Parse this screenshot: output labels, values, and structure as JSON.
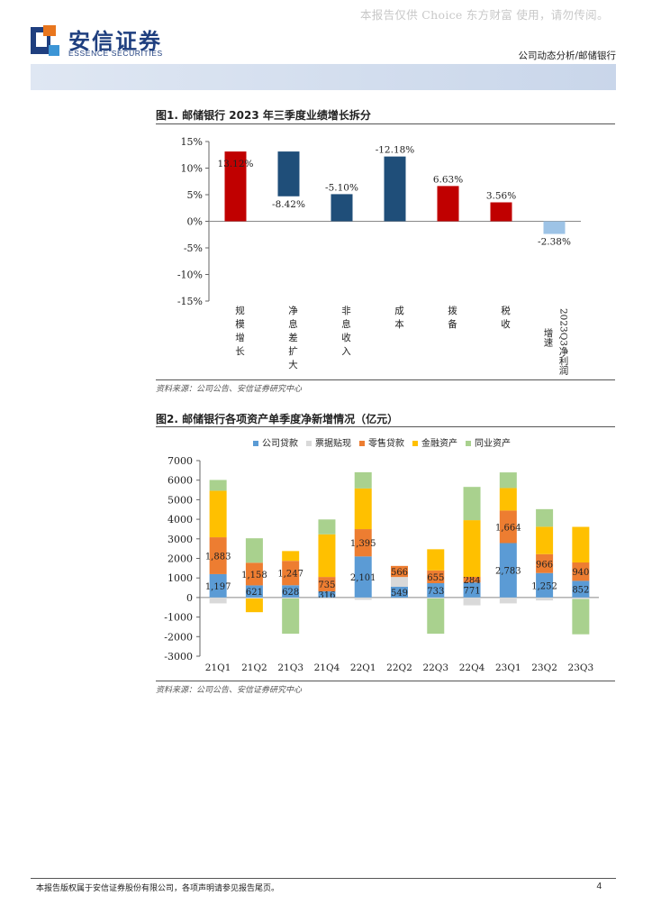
{
  "watermark": "本报告仅供 Choice 东方财富 使用，请勿传阅。",
  "brand": {
    "name_cn": "安信证券",
    "name_en": "ESSENCE SECURITIES",
    "colors": {
      "navy": "#1f3f7f",
      "orange": "#e8761e",
      "light_blue": "#3c95d6"
    }
  },
  "header": {
    "report_type": "公司动态分析/邮储银行"
  },
  "fig1": {
    "title": "图1. 邮储银行 2023 年三季度业绩增长拆分",
    "source": "资料来源：公司公告、安信证券研究中心"
  },
  "fig2": {
    "title": "图2. 邮储银行各项资产单季度净新增情况（亿元）",
    "source": "资料来源：公司公告、安信证券研究中心"
  },
  "footer": {
    "disclaimer": "本报告版权属于安信证券股份有限公司，各项声明请参见报告尾页。",
    "page": "4"
  },
  "chart_data": [
    {
      "type": "bar",
      "subtype": "waterfall",
      "categories": [
        "规模增长",
        "净息差扩大",
        "非息收入",
        "成本",
        "拨备",
        "税收",
        "2023Q3净利润增速"
      ],
      "values": [
        13.12,
        -8.42,
        -5.1,
        -12.18,
        6.63,
        3.56,
        -2.38
      ],
      "labels": [
        "13.12%",
        "-8.42%",
        "-5.10%",
        "-12.18%",
        "6.63%",
        "3.56%",
        "-2.38%"
      ],
      "bars": [
        {
          "bottom": 0,
          "top": 13.12,
          "color": "#c00000"
        },
        {
          "bottom": 4.7,
          "top": 13.12,
          "color": "#1f4e79"
        },
        {
          "bottom": 0,
          "top": 5.1,
          "color": "#1f4e79"
        },
        {
          "bottom": 0,
          "top": 12.18,
          "color": "#1f4e79"
        },
        {
          "bottom": 0,
          "top": 6.63,
          "color": "#c00000"
        },
        {
          "bottom": 0,
          "top": 3.56,
          "color": "#c00000"
        },
        {
          "bottom": -2.38,
          "top": 0,
          "color": "#9dc3e6"
        }
      ],
      "yticks": [
        "15%",
        "10%",
        "5%",
        "0%",
        "-5%",
        "-10%",
        "-15%"
      ],
      "ylim": [
        -15,
        15
      ]
    },
    {
      "type": "bar",
      "subtype": "stacked",
      "categories": [
        "21Q1",
        "21Q2",
        "21Q3",
        "21Q4",
        "22Q1",
        "22Q2",
        "22Q3",
        "22Q4",
        "23Q1",
        "23Q2",
        "23Q3"
      ],
      "series": [
        {
          "name": "公司贷款",
          "color": "#5b9bd5",
          "values": [
            1197,
            621,
            628,
            316,
            2101,
            549,
            733,
            771,
            2783,
            1252,
            852
          ]
        },
        {
          "name": "票据贴现",
          "color": "#d9d9d9",
          "values": [
            -300,
            -50,
            -50,
            -60,
            -120,
            500,
            -50,
            -400,
            -300,
            -150,
            -80
          ]
        },
        {
          "name": "零售贷款",
          "color": "#ed7d31",
          "values": [
            1883,
            1158,
            1247,
            735,
            1395,
            566,
            655,
            284,
            1664,
            966,
            940
          ]
        },
        {
          "name": "金融资产",
          "color": "#ffc000",
          "values": [
            2380,
            -700,
            500,
            2180,
            2080,
            0,
            1080,
            2900,
            1150,
            1400,
            1820
          ]
        },
        {
          "name": "同业资产",
          "color": "#a9d18e",
          "values": [
            550,
            1250,
            -1800,
            760,
            830,
            0,
            -1800,
            1700,
            800,
            900,
            -1800
          ]
        }
      ],
      "data_labels": {
        "公司贷款": [
          "1,197",
          "621",
          "628",
          "316",
          "2,101",
          "549",
          "733",
          "771",
          "2,783",
          "1,252",
          "852"
        ],
        "零售贷款": [
          "1,883",
          "1,158",
          "1,247",
          "735",
          "1,395",
          "566",
          "655",
          "284",
          "1,664",
          "966",
          "940"
        ]
      },
      "yticks": [
        "7000",
        "6000",
        "5000",
        "4000",
        "3000",
        "2000",
        "1000",
        "0",
        "-1000",
        "-2000",
        "-3000"
      ],
      "ylim": [
        -3000,
        7000
      ],
      "legend_position": "top"
    }
  ]
}
